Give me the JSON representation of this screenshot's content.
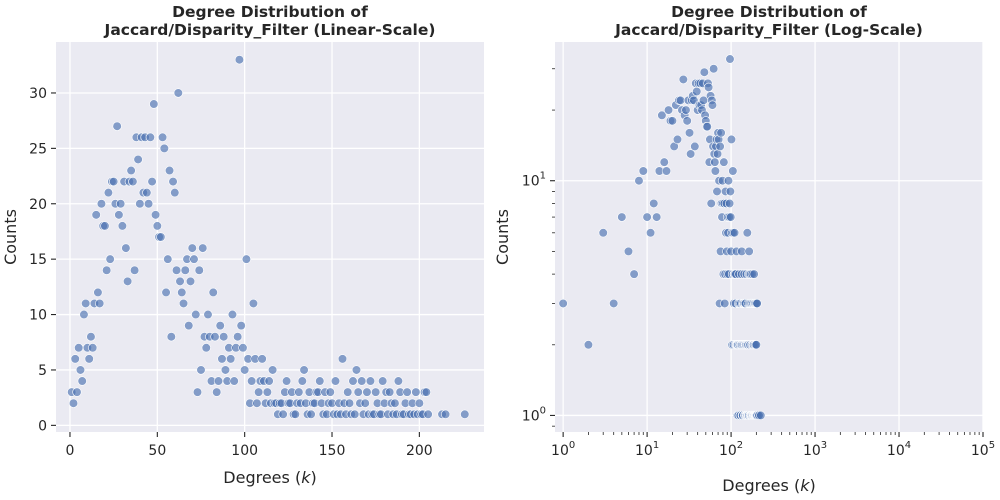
{
  "chart_data": [
    {
      "type": "scatter",
      "title_lines": [
        "Degree Distribution of",
        "Jaccard/Disparity_Filter (Linear-Scale)"
      ],
      "xlabel_prefix": "Degrees (",
      "xlabel_var": "k",
      "xlabel_suffix": ")",
      "ylabel": "Counts",
      "xscale": "linear",
      "yscale": "linear",
      "xlim": [
        -8,
        237
      ],
      "ylim": [
        -0.6,
        34.6
      ],
      "xticks": [
        0,
        50,
        100,
        150,
        200
      ],
      "xtick_labels": [
        "0",
        "50",
        "100",
        "150",
        "200"
      ],
      "yticks": [
        0,
        5,
        10,
        15,
        20,
        25,
        30
      ],
      "ytick_labels": [
        "0",
        "5",
        "10",
        "15",
        "20",
        "25",
        "30"
      ],
      "grid": true,
      "point_color": "#4c72b0",
      "x": [
        1,
        2,
        3,
        4,
        5,
        6,
        7,
        8,
        9,
        10,
        11,
        12,
        13,
        14,
        15,
        16,
        17,
        18,
        19,
        20,
        21,
        22,
        23,
        24,
        25,
        26,
        27,
        28,
        29,
        30,
        31,
        32,
        33,
        34,
        35,
        36,
        37,
        38,
        39,
        40,
        41,
        42,
        43,
        44,
        45,
        46,
        47,
        48,
        49,
        50,
        51,
        52,
        53,
        54,
        55,
        56,
        57,
        58,
        59,
        60,
        61,
        62,
        63,
        64,
        65,
        66,
        67,
        68,
        69,
        70,
        71,
        72,
        73,
        74,
        75,
        76,
        77,
        78,
        79,
        80,
        81,
        82,
        83,
        84,
        85,
        86,
        87,
        88,
        89,
        90,
        91,
        92,
        93,
        94,
        95,
        96,
        97,
        98,
        99,
        100,
        101,
        102,
        103,
        104,
        105,
        106,
        107,
        108,
        109,
        110,
        111,
        112,
        113,
        114,
        115,
        116,
        117,
        118,
        119,
        120,
        121,
        122,
        123,
        124,
        125,
        126,
        127,
        128,
        129,
        130,
        131,
        132,
        133,
        134,
        135,
        136,
        137,
        138,
        139,
        140,
        141,
        142,
        143,
        144,
        145,
        146,
        147,
        148,
        149,
        150,
        151,
        152,
        153,
        154,
        155,
        156,
        157,
        158,
        159,
        160,
        161,
        162,
        163,
        164,
        165,
        166,
        167,
        168,
        169,
        170,
        171,
        172,
        173,
        174,
        175,
        176,
        177,
        178,
        179,
        180,
        181,
        182,
        183,
        184,
        185,
        186,
        187,
        188,
        189,
        190,
        191,
        192,
        193,
        194,
        195,
        196,
        197,
        198,
        199,
        200,
        201,
        202,
        203,
        204,
        205,
        213,
        215,
        226
      ],
      "y": [
        3,
        2,
        6,
        3,
        7,
        5,
        4,
        10,
        11,
        7,
        6,
        8,
        7,
        11,
        19,
        12,
        11,
        20,
        18,
        18,
        14,
        21,
        15,
        22,
        22,
        20,
        27,
        19,
        20,
        18,
        22,
        16,
        13,
        22,
        23,
        22,
        14,
        26,
        24,
        20,
        26,
        21,
        26,
        21,
        20,
        26,
        22,
        29,
        19,
        18,
        17,
        17,
        26,
        25,
        12,
        15,
        23,
        8,
        22,
        21,
        14,
        30,
        13,
        12,
        11,
        14,
        15,
        9,
        13,
        16,
        15,
        10,
        3,
        14,
        5,
        16,
        8,
        7,
        10,
        8,
        4,
        12,
        8,
        3,
        4,
        9,
        6,
        8,
        5,
        4,
        7,
        6,
        10,
        4,
        7,
        8,
        33,
        9,
        7,
        5,
        15,
        6,
        2,
        4,
        11,
        6,
        2,
        3,
        4,
        6,
        4,
        2,
        3,
        4,
        2,
        5,
        2,
        2,
        1,
        2,
        2,
        1,
        3,
        4,
        2,
        2,
        3,
        1,
        1,
        2,
        3,
        2,
        4,
        5,
        2,
        1,
        3,
        1,
        2,
        2,
        3,
        3,
        4,
        2,
        1,
        3,
        1,
        2,
        3,
        2,
        1,
        4,
        1,
        2,
        1,
        6,
        2,
        1,
        3,
        2,
        1,
        4,
        1,
        5,
        3,
        2,
        4,
        1,
        2,
        3,
        1,
        4,
        1,
        1,
        3,
        2,
        1,
        1,
        4,
        2,
        3,
        1,
        3,
        2,
        1,
        2,
        1,
        4,
        3,
        1,
        1,
        2,
        3,
        1,
        1,
        2,
        1,
        3,
        1,
        2,
        1,
        1,
        3,
        3,
        1,
        1,
        1,
        1
      ]
    },
    {
      "type": "scatter",
      "title_lines": [
        "Degree Distribution of",
        "Jaccard/Disparity_Filter (Log-Scale)"
      ],
      "xlabel_prefix": "Degrees (",
      "xlabel_var": "k",
      "xlabel_suffix": ")",
      "ylabel": "Counts",
      "xscale": "log",
      "yscale": "log",
      "xlim": [
        0.8,
        100000
      ],
      "ylim": [
        0.85,
        39
      ],
      "xticks": [
        1,
        10,
        100,
        1000,
        10000,
        100000
      ],
      "xtick_labels": [
        {
          "base": "10",
          "exp": "0"
        },
        {
          "base": "10",
          "exp": "1"
        },
        {
          "base": "10",
          "exp": "2"
        },
        {
          "base": "10",
          "exp": "3"
        },
        {
          "base": "10",
          "exp": "4"
        },
        {
          "base": "10",
          "exp": "5"
        }
      ],
      "yticks": [
        1,
        10
      ],
      "ytick_labels": [
        {
          "base": "10",
          "exp": "0"
        },
        {
          "base": "10",
          "exp": "1"
        }
      ],
      "grid": true,
      "point_color": "#4c72b0",
      "note_same_data_as_first_panel": true
    }
  ]
}
